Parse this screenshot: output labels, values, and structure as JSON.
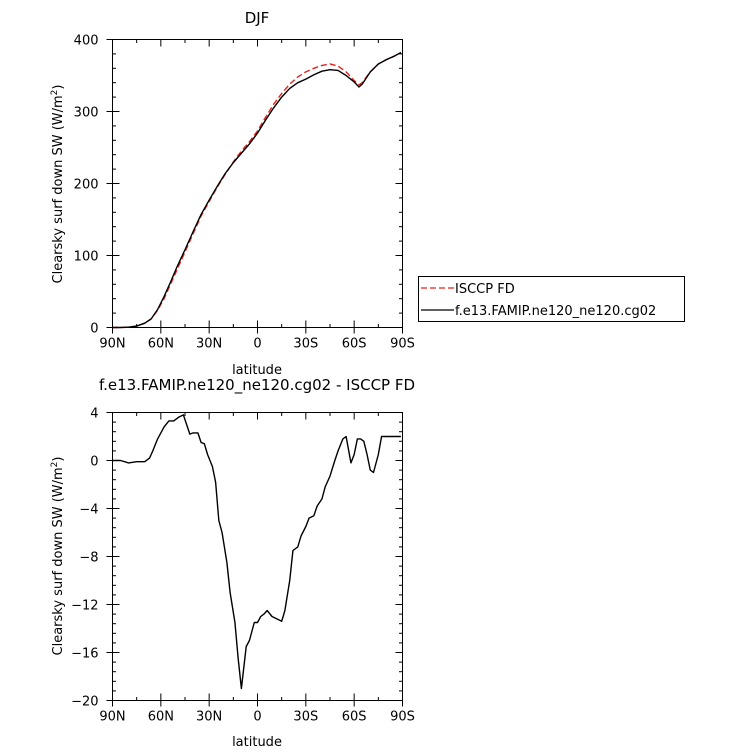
{
  "chart_data": [
    {
      "type": "line",
      "title": "DJF",
      "xlabel": "latitude",
      "ylabel": "Clearsky surf down SW (W/m²)",
      "ylabel_base": "Clearsky surf down SW (W/m",
      "ylabel_sup": "2",
      "ylabel_end": ")",
      "xlim": [
        -90,
        90
      ],
      "ylim": [
        0,
        400
      ],
      "x_ticks": [
        -90,
        -60,
        -30,
        0,
        30,
        60,
        90
      ],
      "x_tick_labels": [
        "90N",
        "60N",
        "30N",
        "0",
        "30S",
        "60S",
        "90S"
      ],
      "y_ticks": [
        0,
        100,
        200,
        300,
        400
      ],
      "y_tick_labels": [
        "0",
        "100",
        "200",
        "300",
        "400"
      ],
      "legend_position": "right-outside",
      "series": [
        {
          "name": "ISCCP FD",
          "color": "#e8201c",
          "dash": "dashed",
          "x": [
            -90,
            -85,
            -80,
            -75,
            -70,
            -66,
            -62,
            -58,
            -54,
            -50,
            -45,
            -40,
            -35,
            -30,
            -25,
            -20,
            -15,
            -10,
            -5,
            0,
            5,
            10,
            15,
            20,
            25,
            30,
            35,
            40,
            45,
            50,
            55,
            60,
            63,
            65,
            70,
            75,
            80,
            85,
            89
          ],
          "y": [
            0,
            0,
            0.5,
            2,
            6,
            12,
            24,
            40,
            60,
            80,
            105,
            130,
            155,
            175,
            195,
            213,
            230,
            245,
            258,
            273,
            292,
            310,
            325,
            338,
            348,
            355,
            360,
            364,
            366,
            363,
            355,
            343,
            337,
            340,
            355,
            366,
            372,
            377,
            382
          ]
        },
        {
          "name": "f.e13.FAMIP.ne120_ne120.cg02",
          "color": "#000000",
          "dash": "solid",
          "x": [
            -90,
            -85,
            -80,
            -75,
            -70,
            -66,
            -62,
            -58,
            -54,
            -50,
            -45,
            -40,
            -35,
            -30,
            -25,
            -20,
            -15,
            -10,
            -5,
            0,
            5,
            10,
            15,
            20,
            25,
            30,
            35,
            40,
            45,
            50,
            55,
            60,
            63,
            65,
            70,
            75,
            80,
            85,
            89
          ],
          "y": [
            0,
            0,
            0.5,
            2,
            6,
            12,
            25,
            43,
            63,
            84,
            108,
            133,
            157,
            177,
            196,
            214,
            229,
            242,
            255,
            270,
            288,
            305,
            320,
            332,
            340,
            345,
            351,
            356,
            358,
            357,
            350,
            341,
            334,
            338,
            355,
            366,
            372,
            377,
            382
          ]
        }
      ]
    },
    {
      "type": "line",
      "title": "f.e13.FAMIP.ne120_ne120.cg02 - ISCCP FD",
      "xlabel": "latitude",
      "ylabel": "Clearsky surf down SW (W/m²)",
      "ylabel_base": "Clearsky surf down SW (W/m",
      "ylabel_sup": "2",
      "ylabel_end": ")",
      "xlim": [
        -90,
        90
      ],
      "ylim": [
        -20,
        4
      ],
      "x_ticks": [
        -90,
        -60,
        -30,
        0,
        30,
        60,
        90
      ],
      "x_tick_labels": [
        "90N",
        "60N",
        "30N",
        "0",
        "30S",
        "60S",
        "90S"
      ],
      "y_ticks": [
        -20,
        -16,
        -12,
        -8,
        -4,
        0,
        4
      ],
      "y_tick_labels": [
        "−20",
        "−16",
        "−12",
        "−8",
        "−4",
        "0",
        "4"
      ],
      "series": [
        {
          "color": "#000000",
          "x": [
            -90,
            -85,
            -80,
            -75,
            -70,
            -67,
            -65,
            -62,
            -58,
            -55,
            -52,
            -49,
            -46,
            -44,
            -42,
            -40,
            -37,
            -35,
            -33,
            -31,
            -28,
            -26,
            -24,
            -22,
            -19,
            -17,
            -14,
            -12,
            -10,
            -7,
            -5,
            -4,
            -2,
            0,
            2,
            4,
            6,
            9,
            12,
            15,
            17,
            20,
            22,
            25,
            27,
            30,
            32,
            35,
            37,
            40,
            42,
            45,
            48,
            50,
            53,
            55,
            58,
            60,
            62,
            64,
            66,
            68,
            70,
            72,
            75,
            77,
            80,
            82,
            84,
            86,
            89
          ],
          "y": [
            0,
            0,
            -0.2,
            -0.1,
            -0.1,
            0.2,
            0.8,
            1.8,
            2.8,
            3.3,
            3.3,
            3.6,
            3.8,
            3.0,
            2.2,
            2.3,
            2.3,
            1.5,
            1.4,
            0.5,
            -0.5,
            -1.8,
            -5.0,
            -6.0,
            -8.5,
            -11.0,
            -13.5,
            -16.5,
            -19.0,
            -15.5,
            -15.0,
            -14.5,
            -13.5,
            -13.5,
            -13.0,
            -12.8,
            -12.5,
            -13.0,
            -13.2,
            -13.4,
            -12.5,
            -10.0,
            -7.5,
            -7.2,
            -6.3,
            -5.5,
            -4.8,
            -4.6,
            -3.8,
            -3.2,
            -2.2,
            -1.3,
            0,
            0.8,
            1.8,
            2.0,
            -0.2,
            0.5,
            1.8,
            1.8,
            1.6,
            0.5,
            -0.8,
            -1.0,
            0.5,
            2.0,
            2.0,
            2.0,
            2.0,
            2.0,
            2.0
          ]
        }
      ]
    }
  ]
}
